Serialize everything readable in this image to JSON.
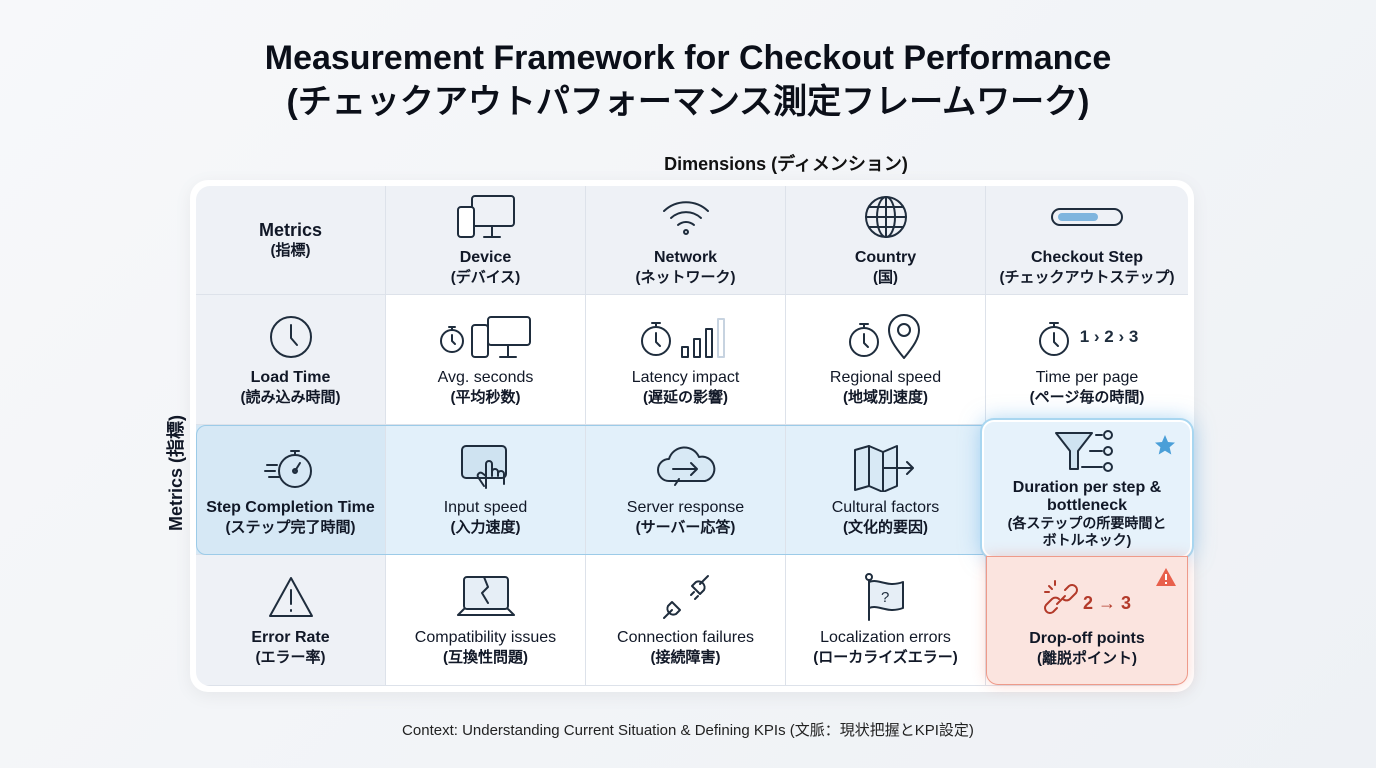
{
  "title": {
    "line1": "Measurement Framework for Checkout Performance",
    "line2": "(チェックアウトパフォーマンス測定フレームワーク)"
  },
  "dimensions_label": "Dimensions (ディメンション)",
  "metrics_axis_label": "Metrics (指標)",
  "header": {
    "corner": {
      "en": "Metrics",
      "jp": "(指標)"
    },
    "columns": [
      {
        "en": "Device",
        "jp": "(デバイス)",
        "icon": "devices-icon"
      },
      {
        "en": "Network",
        "jp": "(ネットワーク)",
        "icon": "wifi-icon"
      },
      {
        "en": "Country",
        "jp": "(国)",
        "icon": "globe-icon"
      },
      {
        "en": "Checkout Step",
        "jp": "(チェックアウトステップ)",
        "icon": "progress-bar-icon"
      }
    ]
  },
  "rows": [
    {
      "en": "Load Time",
      "jp": "(読み込み時間)",
      "icon": "clock-icon",
      "cells": [
        {
          "en": "Avg. seconds",
          "jp": "(平均秒数)"
        },
        {
          "en": "Latency impact",
          "jp": "(遅延の影響)"
        },
        {
          "en": "Regional speed",
          "jp": "(地域別速度)"
        },
        {
          "en": "Time per page",
          "jp": "(ページ毎の時間)",
          "steps": "1 › 2 › 3"
        }
      ]
    },
    {
      "en": "Step Completion Time",
      "jp": "(ステップ完了時間)",
      "icon": "stopwatch-icon",
      "cells": [
        {
          "en": "Input speed",
          "jp": "(入力速度)"
        },
        {
          "en": "Server response",
          "jp": "(サーバー応答)"
        },
        {
          "en": "Cultural factors",
          "jp": "(文化的要因)"
        },
        {
          "en": "Duration per step & bottleneck",
          "jp": "(各ステップの所要時間とボトルネック)"
        }
      ]
    },
    {
      "en": "Error Rate",
      "jp": "(エラー率)",
      "icon": "warning-icon",
      "cells": [
        {
          "en": "Compatibility issues",
          "jp": "(互換性問題)"
        },
        {
          "en": "Connection failures",
          "jp": "(接続障害)"
        },
        {
          "en": "Localization errors",
          "jp": "(ローカライズエラー)"
        },
        {
          "en": "Drop-off points",
          "jp": "(離脱ポイント)",
          "steps": "2 → 3"
        }
      ]
    }
  ],
  "footer": "Context: Understanding Current Situation & Defining KPIs (文脈：現状把握とKPI設定)",
  "colors": {
    "highlight": "#e2f0fa",
    "focus_border": "#a8d6f0",
    "alert": "#fbe4df",
    "alert_icon": "#e8604c",
    "star": "#4a9fd8"
  }
}
